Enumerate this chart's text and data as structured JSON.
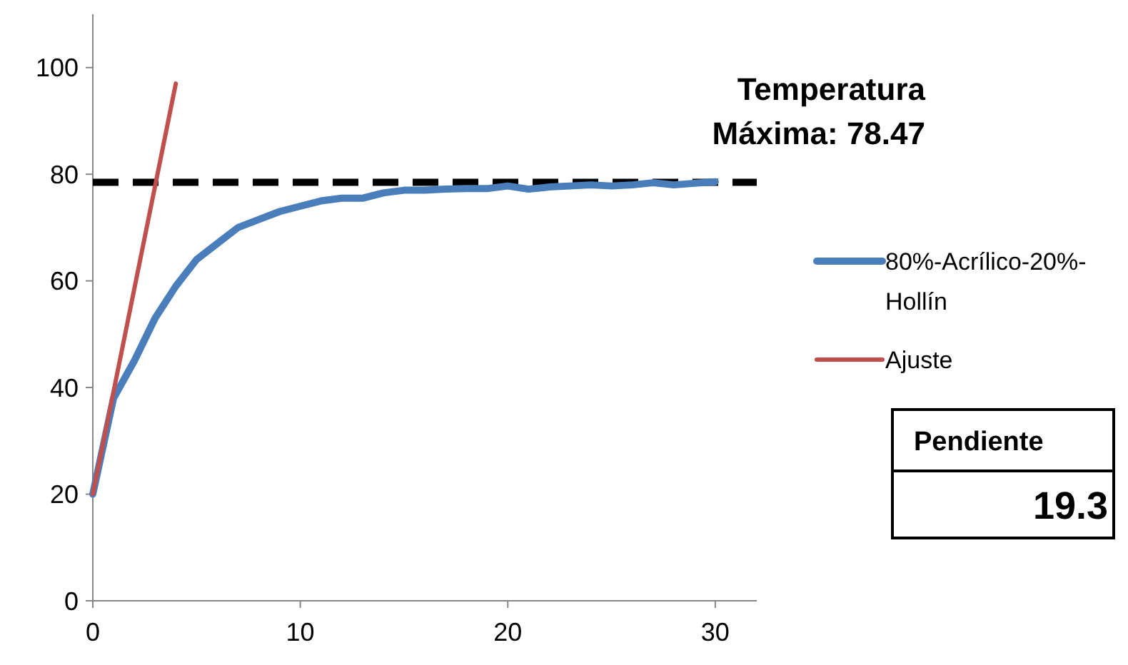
{
  "chart_data": {
    "type": "line",
    "x": [
      0,
      1,
      2,
      3,
      4,
      5,
      6,
      7,
      8,
      9,
      10,
      11,
      12,
      13,
      14,
      15,
      16,
      17,
      18,
      19,
      20,
      21,
      22,
      23,
      24,
      25,
      26,
      27,
      28,
      29,
      30
    ],
    "series": [
      {
        "name": "80%-Acrílico-20%-Hollín",
        "color": "#4a7ebb",
        "values": [
          20,
          38,
          45,
          53,
          59,
          64,
          67,
          70,
          71.5,
          73,
          74,
          75,
          75.5,
          75.5,
          76.5,
          77,
          77,
          77.2,
          77.3,
          77.3,
          77.8,
          77.2,
          77.6,
          77.8,
          78,
          77.8,
          78,
          78.4,
          78,
          78.3,
          78.6
        ]
      },
      {
        "name": "Ajuste",
        "color": "#c0504d",
        "x": [
          0,
          4
        ],
        "values": [
          20,
          97
        ]
      }
    ],
    "xlim": [
      0,
      32
    ],
    "ylim": [
      0,
      110
    ],
    "xticks": [
      0,
      10,
      20,
      30
    ],
    "yticks": [
      0,
      20,
      40,
      60,
      80,
      100
    ],
    "ref_lines": [
      {
        "axis": "y",
        "value": 78.47,
        "label": "Temperatura Máxima: 78.47",
        "color": "#000000",
        "line_style": "dashed"
      }
    ],
    "annotations": [
      "Pendiente",
      "19.3"
    ],
    "legend": "right",
    "grid": false,
    "marker": "none",
    "line_style": "solid"
  }
}
